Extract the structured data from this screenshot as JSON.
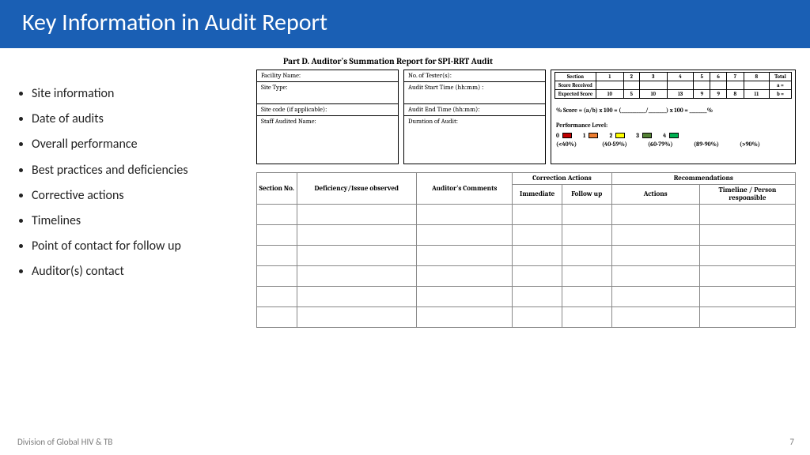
{
  "header": {
    "title": "Key Information in Audit Report"
  },
  "bullets": [
    "Site information",
    "Date of audits",
    "Overall performance",
    "Best practices and deficiencies",
    "Corrective actions",
    "Timelines",
    "Point of contact for follow up",
    "Auditor(s) contact"
  ],
  "part_title": "Part D. Auditor's Summation Report for SPI-RRT Audit",
  "card1": {
    "r1": "Facility Name:",
    "r2": "Site Type:",
    "r3": "Site code (if applicable):",
    "r4": "Staff Audited Name:"
  },
  "card2": {
    "r1": "No. of Tester(s):",
    "r2": "Audit Start Time (hh:mm) :",
    "r3": "Audit End Time (hh:mm):",
    "r4": "Duration of Audit:"
  },
  "score_table": {
    "headers": [
      "Section",
      "1",
      "2",
      "3",
      "4",
      "5",
      "6",
      "7",
      "8",
      "Total"
    ],
    "row_received": "Score Received",
    "a_eq": "a =",
    "row_expected": "Expected Score",
    "expected": [
      "10",
      "5",
      "10",
      "13",
      "9",
      "9",
      "8",
      "11"
    ],
    "b_eq": "b ="
  },
  "formula": "% Score = (a/b) x 100 = (___________/________) x 100 = ________%",
  "performance": {
    "label": "Performance Level:",
    "levels": [
      {
        "n": "0",
        "color": "#c00000",
        "pct": "(<40%)"
      },
      {
        "n": "1",
        "color": "#ed7d31",
        "pct": "(40-59%)"
      },
      {
        "n": "2",
        "color": "#ffff00",
        "pct": "(60-79%)"
      },
      {
        "n": "3",
        "color": "#548235",
        "pct": "(89-90%)"
      },
      {
        "n": "4",
        "color": "#00b050",
        "pct": "(>90%)"
      }
    ]
  },
  "big_table": {
    "h_section": "Section No.",
    "h_def": "Deficiency/Issue observed",
    "h_aud": "Auditor's Comments",
    "h_corr": "Correction Actions",
    "h_rec": "Recommendations",
    "h_imm": "Immediate",
    "h_follow": "Follow up",
    "h_actions": "Actions",
    "h_timeline": "Timeline / Person responsible",
    "widths": {
      "section": 50,
      "def": 150,
      "aud": 120,
      "imm": 62,
      "follow": 62,
      "actions": 110,
      "timeline": 120
    },
    "header_row_h": 20,
    "body_rows": 6,
    "body_row_h": 26
  },
  "footer": {
    "left": "Division of Global HIV & TB",
    "page": "7"
  },
  "colors": {
    "header_bg": "#1a5fb4",
    "header_fg": "#ffffff",
    "text": "#222222",
    "footer": "#7a7a7a",
    "border": "#000000",
    "grid_border": "#888888"
  }
}
